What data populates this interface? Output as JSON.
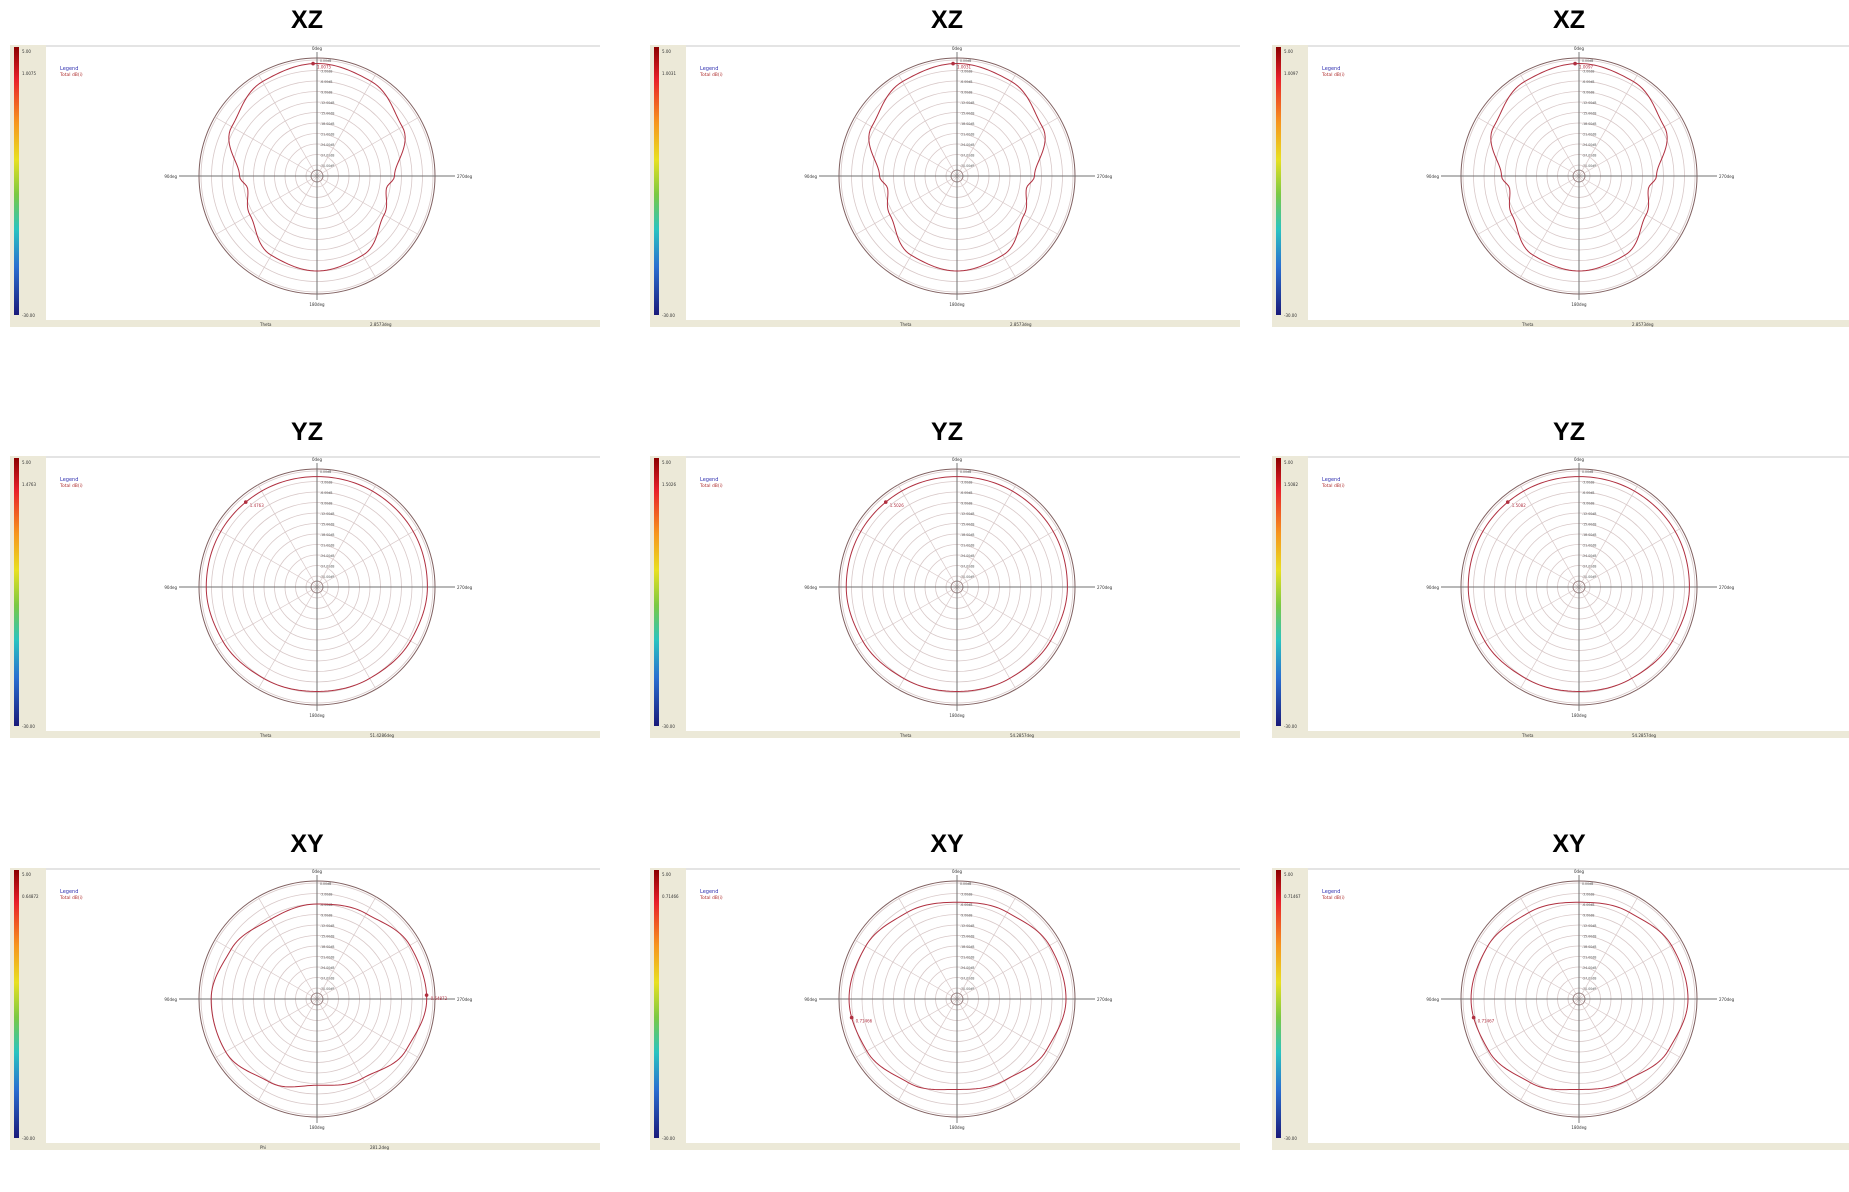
{
  "labels": {
    "legend_title": "Legend",
    "legend_entry": "Total dB(i)",
    "angle_top": "0deg",
    "angle_left": "90deg",
    "angle_right": "270deg",
    "angle_bottom": "180deg",
    "colorbar_bottom": "-30.00"
  },
  "chart_data": [
    {
      "type": "polar",
      "plane": "XZ",
      "title": "XZ",
      "colorbar_max_label": "1.0075",
      "rings_db": [
        0,
        -3,
        -6,
        -9,
        -12,
        -15,
        -18,
        -21,
        -24,
        -27,
        -30
      ],
      "rlim_db": [
        -30,
        0
      ],
      "marker_value": "1.0075",
      "marker_angle_deg": 2,
      "bottom_left_label": "Theta",
      "bottom_right_label": "2.8573deg",
      "series": [
        {
          "name": "Total dB(i)",
          "angles_deg": [
            0,
            30,
            60,
            90,
            100,
            120,
            150,
            180,
            210,
            240,
            260,
            270,
            300,
            330,
            360
          ],
          "gain_db": [
            -1,
            -2,
            -5,
            -11,
            -13,
            -11,
            -7,
            -6,
            -7,
            -11,
            -13,
            -11,
            -5,
            -2,
            -1
          ]
        }
      ]
    },
    {
      "type": "polar",
      "plane": "XZ",
      "title": "XZ",
      "colorbar_max_label": "1.0031",
      "rings_db": [
        0,
        -3,
        -6,
        -9,
        -12,
        -15,
        -18,
        -21,
        -24,
        -27,
        -30
      ],
      "rlim_db": [
        -30,
        0
      ],
      "marker_value": "1.0031",
      "marker_angle_deg": 2,
      "bottom_left_label": "Theta",
      "bottom_right_label": "2.8573deg",
      "series": [
        {
          "name": "Total dB(i)",
          "angles_deg": [
            0,
            30,
            60,
            90,
            100,
            120,
            150,
            180,
            210,
            240,
            260,
            270,
            300,
            330,
            360
          ],
          "gain_db": [
            -1,
            -2,
            -5,
            -11,
            -13,
            -11,
            -7,
            -6,
            -7,
            -11,
            -13,
            -11,
            -5,
            -2,
            -1
          ]
        }
      ]
    },
    {
      "type": "polar",
      "plane": "XZ",
      "title": "XZ",
      "colorbar_max_label": "1.0097",
      "rings_db": [
        0,
        -3,
        -6,
        -9,
        -12,
        -15,
        -18,
        -21,
        -24,
        -27,
        -30
      ],
      "rlim_db": [
        -30,
        0
      ],
      "marker_value": "1.0097",
      "marker_angle_deg": 2,
      "bottom_left_label": "Theta",
      "bottom_right_label": "2.8573deg",
      "series": [
        {
          "name": "Total dB(i)",
          "angles_deg": [
            0,
            30,
            60,
            90,
            100,
            120,
            150,
            180,
            210,
            240,
            260,
            270,
            300,
            330,
            360
          ],
          "gain_db": [
            -1,
            -2,
            -5,
            -11,
            -13,
            -11,
            -7,
            -6,
            -7,
            -11,
            -13,
            -11,
            -5,
            -2,
            -1
          ]
        }
      ]
    },
    {
      "type": "polar",
      "plane": "YZ",
      "title": "YZ",
      "colorbar_max_label": "1.4763",
      "rings_db": [
        0,
        -3,
        -6,
        -9,
        -12,
        -15,
        -18,
        -21,
        -24,
        -27,
        -30
      ],
      "rlim_db": [
        -30,
        0
      ],
      "marker_value": "1.4763",
      "marker_angle_deg": 40,
      "bottom_left_label": "Theta",
      "bottom_right_label": "51.4286deg",
      "series": [
        {
          "name": "Total dB(i)",
          "angles_deg": [
            0,
            30,
            60,
            90,
            120,
            150,
            180,
            210,
            240,
            270,
            300,
            330,
            360
          ],
          "gain_db": [
            -1.6,
            -1.5,
            -1.4,
            -1.5,
            -2.1,
            -2.9,
            -3.3,
            -3.0,
            -2.3,
            -1.6,
            -1.4,
            -1.5,
            -1.6
          ]
        }
      ]
    },
    {
      "type": "polar",
      "plane": "YZ",
      "title": "YZ",
      "colorbar_max_label": "1.5026",
      "rings_db": [
        0,
        -3,
        -6,
        -9,
        -12,
        -15,
        -18,
        -21,
        -24,
        -27,
        -30
      ],
      "rlim_db": [
        -30,
        0
      ],
      "marker_value": "1.5026",
      "marker_angle_deg": 40,
      "bottom_left_label": "Theta",
      "bottom_right_label": "54.2857deg",
      "series": [
        {
          "name": "Total dB(i)",
          "angles_deg": [
            0,
            30,
            60,
            90,
            120,
            150,
            180,
            210,
            240,
            270,
            300,
            330,
            360
          ],
          "gain_db": [
            -1.6,
            -1.5,
            -1.4,
            -1.5,
            -2.1,
            -2.9,
            -3.3,
            -3.0,
            -2.3,
            -1.6,
            -1.4,
            -1.5,
            -1.6
          ]
        }
      ]
    },
    {
      "type": "polar",
      "plane": "YZ",
      "title": "YZ",
      "colorbar_max_label": "1.5082",
      "rings_db": [
        0,
        -3,
        -6,
        -9,
        -12,
        -15,
        -18,
        -21,
        -24,
        -27,
        -30
      ],
      "rlim_db": [
        -30,
        0
      ],
      "marker_value": "1.5082",
      "marker_angle_deg": 40,
      "bottom_left_label": "Theta",
      "bottom_right_label": "54.2857deg",
      "series": [
        {
          "name": "Total dB(i)",
          "angles_deg": [
            0,
            30,
            60,
            90,
            120,
            150,
            180,
            210,
            240,
            270,
            300,
            330,
            360
          ],
          "gain_db": [
            -1.6,
            -1.5,
            -1.4,
            -1.5,
            -2.1,
            -2.9,
            -3.3,
            -3.0,
            -2.3,
            -1.6,
            -1.4,
            -1.5,
            -1.6
          ]
        }
      ]
    },
    {
      "type": "polar",
      "plane": "XY",
      "title": "XY",
      "colorbar_max_label": "0.64872",
      "rings_db": [
        0,
        -3,
        -6,
        -9,
        -12,
        -15,
        -18,
        -21,
        -24,
        -27,
        -30
      ],
      "rlim_db": [
        -30,
        0
      ],
      "marker_value": "0.64872",
      "marker_angle_deg": 272,
      "bottom_left_label": "Phi",
      "bottom_right_label": "281.2deg",
      "series": [
        {
          "name": "Total dB(i)",
          "angles_deg": [
            0,
            30,
            60,
            90,
            120,
            150,
            180,
            210,
            240,
            270,
            300,
            330,
            360
          ],
          "gain_db": [
            -6,
            -6.8,
            -4.8,
            -2.9,
            -3,
            -5.8,
            -8.5,
            -7,
            -3.8,
            -1.8,
            -2.5,
            -5,
            -6
          ]
        }
      ]
    },
    {
      "type": "polar",
      "plane": "XY",
      "title": "XY",
      "colorbar_max_label": "0.71466",
      "rings_db": [
        0,
        -3,
        -6,
        -9,
        -12,
        -15,
        -18,
        -21,
        -24,
        -27,
        -30
      ],
      "rlim_db": [
        -30,
        0
      ],
      "marker_value": "0.71466",
      "marker_angle_deg": 100,
      "bottom_left_label": "",
      "bottom_right_label": "",
      "series": [
        {
          "name": "Total dB(i)",
          "angles_deg": [
            0,
            30,
            60,
            90,
            120,
            150,
            180,
            210,
            240,
            270,
            300,
            330,
            360
          ],
          "gain_db": [
            -5.5,
            -4.6,
            -3,
            -2.3,
            -3.4,
            -5.5,
            -7.3,
            -6.2,
            -3.7,
            -2,
            -2.6,
            -4.5,
            -5.5
          ]
        }
      ]
    },
    {
      "type": "polar",
      "plane": "XY",
      "title": "XY",
      "colorbar_max_label": "0.71467",
      "rings_db": [
        0,
        -3,
        -6,
        -9,
        -12,
        -15,
        -18,
        -21,
        -24,
        -27,
        -30
      ],
      "rlim_db": [
        -30,
        0
      ],
      "marker_value": "0.71467",
      "marker_angle_deg": 100,
      "bottom_left_label": "",
      "bottom_right_label": "",
      "series": [
        {
          "name": "Total dB(i)",
          "angles_deg": [
            0,
            30,
            60,
            90,
            120,
            150,
            180,
            210,
            240,
            270,
            300,
            330,
            360
          ],
          "gain_db": [
            -5.5,
            -4.6,
            -3,
            -2.3,
            -3.4,
            -5.5,
            -7.3,
            -6.2,
            -3.7,
            -2,
            -2.6,
            -4.5,
            -5.5
          ]
        }
      ]
    }
  ]
}
